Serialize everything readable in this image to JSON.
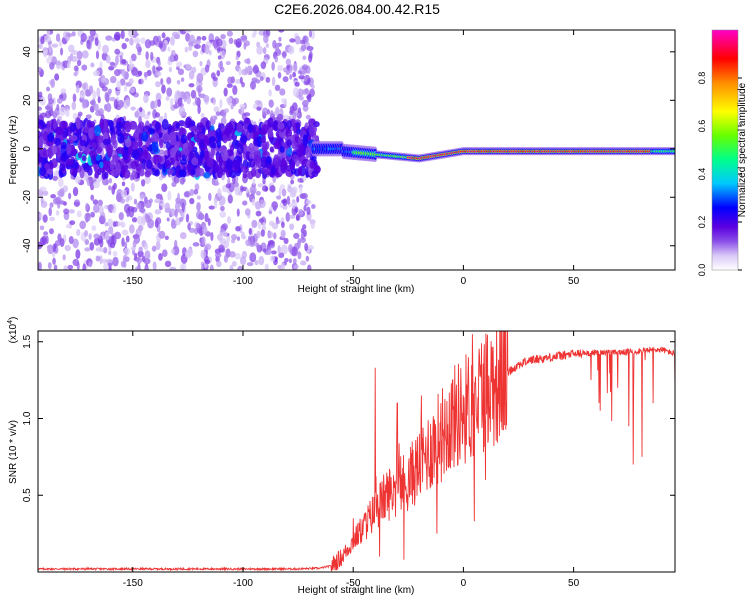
{
  "title": "C2E6.2026.084.00.42.R15",
  "chart_data": [
    {
      "type": "heatmap",
      "xlabel": "Height of straight line (km)",
      "ylabel": "Frequency (Hz)",
      "xlim": [
        -193,
        96
      ],
      "ylim": [
        -50,
        49
      ],
      "xticks": [
        -150,
        -100,
        -50,
        0,
        50
      ],
      "yticks": [
        -40,
        -20,
        0,
        20,
        40
      ],
      "colorbar": {
        "label": "Normalized spectral amplitude",
        "range": [
          0.0,
          1.0
        ],
        "ticks": [
          0.0,
          0.2,
          0.4,
          0.6,
          0.8
        ],
        "colormap": [
          "#ffffff",
          "#c9b6f2",
          "#6a1fe0",
          "#0000ff",
          "#00e6ff",
          "#00ff7a",
          "#b4ff00",
          "#ffff00",
          "#ff8a00",
          "#ff0000",
          "#ff00c8"
        ]
      },
      "description_points": [
        {
          "x": -150,
          "y": 0,
          "amp": 0.15
        },
        {
          "x": -100,
          "y": 0,
          "amp": 0.18
        },
        {
          "x": -65,
          "y": 0,
          "amp": 0.35
        },
        {
          "x": -50,
          "y": -1,
          "amp": 0.45
        },
        {
          "x": -25,
          "y": -4,
          "amp": 0.85
        },
        {
          "x": 0,
          "y": -1,
          "amp": 0.9
        },
        {
          "x": 50,
          "y": -1,
          "amp": 0.98
        },
        {
          "x": 90,
          "y": -1,
          "amp": 0.6
        }
      ]
    },
    {
      "type": "line",
      "xlabel": "Height of straight line (km)",
      "ylabel": "SNR (10 * v/v)",
      "yunit": "(x10",
      "yunit_exp": "4",
      "xlim": [
        -193,
        96
      ],
      "ylim": [
        0,
        1.57
      ],
      "xticks": [
        -150,
        -100,
        -50,
        0,
        50
      ],
      "yticks": [
        0.5,
        1.0,
        1.5
      ],
      "ytick_labels": [
        "0.5",
        "1.0",
        "1.5"
      ],
      "color": "#ee3333",
      "series": [
        {
          "x": [
            -193,
            -170,
            -150,
            -130,
            -110,
            -90,
            -75,
            -65,
            -60,
            -55,
            -50,
            -45,
            -40,
            -35,
            -30,
            -25,
            -20,
            -15,
            -10,
            -5,
            0,
            5,
            10,
            15,
            20,
            25,
            30,
            40,
            50,
            60,
            70,
            80,
            90,
            96
          ],
          "values": [
            0.02,
            0.02,
            0.02,
            0.02,
            0.02,
            0.02,
            0.02,
            0.025,
            0.04,
            0.1,
            0.2,
            0.3,
            0.4,
            0.5,
            0.55,
            0.6,
            0.7,
            0.8,
            0.9,
            1.0,
            1.05,
            1.12,
            1.2,
            1.25,
            1.3,
            1.35,
            1.38,
            1.4,
            1.42,
            1.43,
            1.43,
            1.44,
            1.45,
            1.42
          ]
        }
      ],
      "spikes": [
        {
          "x": -50,
          "value": 0.35
        },
        {
          "x": -40,
          "value": 1.33
        },
        {
          "x": -38,
          "value": 0.1
        },
        {
          "x": -30,
          "value": 1.1
        },
        {
          "x": -27,
          "value": 0.08
        },
        {
          "x": -19,
          "value": 1.15
        },
        {
          "x": -12,
          "value": 0.25
        },
        {
          "x": 4,
          "value": 1.55
        },
        {
          "x": 5,
          "value": 0.33
        },
        {
          "x": 10,
          "value": 0.6
        },
        {
          "x": 62,
          "value": 1.05
        },
        {
          "x": 70,
          "value": 1.2
        },
        {
          "x": 75,
          "value": 0.95
        },
        {
          "x": 77,
          "value": 0.7
        },
        {
          "x": 81,
          "value": 0.75
        },
        {
          "x": 86,
          "value": 1.1
        }
      ]
    }
  ]
}
